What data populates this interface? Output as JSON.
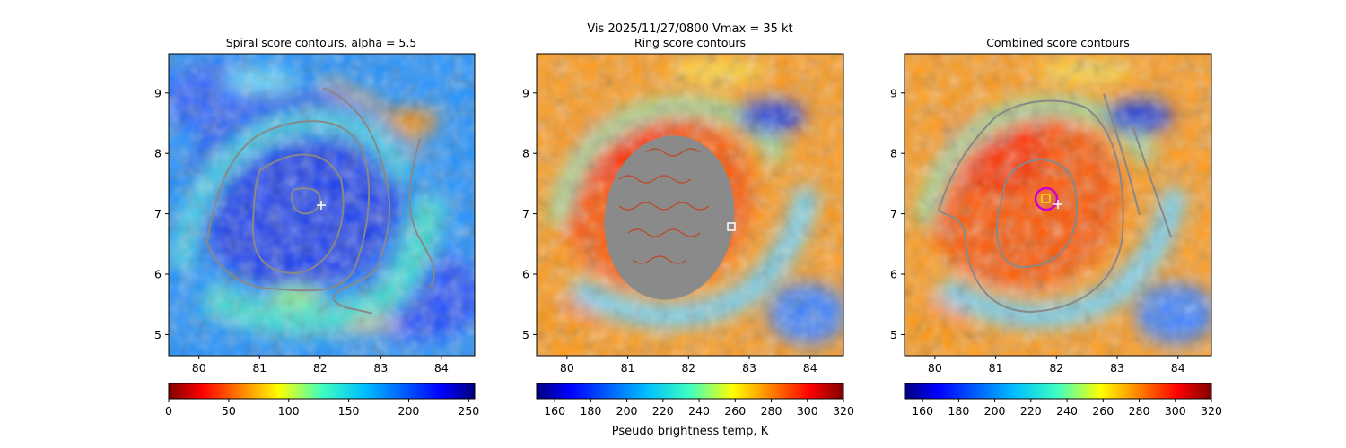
{
  "suptitle": "Vis  2025/11/27/0800    Vmax = 35 kt",
  "colorbar_xlabel": "Pseudo brightness temp, K",
  "chart_data": [
    {
      "type": "heatmap",
      "title": "Spiral score contours, alpha =  5.5",
      "xlim": [
        79.5,
        84.55
      ],
      "ylim": [
        4.65,
        9.65
      ],
      "xticks": [
        "80",
        "81",
        "82",
        "83",
        "84"
      ],
      "yticks": [
        "5",
        "6",
        "7",
        "8",
        "9"
      ],
      "colormap": "jet",
      "colorbar": {
        "min": 0,
        "max": 255,
        "ticks": [
          "0",
          "50",
          "100",
          "150",
          "200",
          "250"
        ],
        "label": ""
      },
      "background": "cool",
      "markers": [
        {
          "kind": "plus",
          "x": 82.0,
          "y": 7.15,
          "color": "#ffffff"
        }
      ],
      "contour_color": "#888888"
    },
    {
      "type": "heatmap",
      "title": "Ring score contours",
      "xlim": [
        79.5,
        84.55
      ],
      "ylim": [
        4.65,
        9.65
      ],
      "xticks": [
        "80",
        "81",
        "82",
        "83",
        "84"
      ],
      "yticks": [
        "5",
        "6",
        "7",
        "8",
        "9"
      ],
      "colormap": "jet_r",
      "colorbar": {
        "min": 150,
        "max": 320,
        "ticks": [
          "160",
          "180",
          "200",
          "220",
          "240",
          "260",
          "280",
          "300",
          "320"
        ],
        "label": "Pseudo brightness temp, K"
      },
      "background": "warm",
      "markers": [
        {
          "kind": "square",
          "x": 82.7,
          "y": 6.8,
          "color": "#ffffff"
        }
      ],
      "contour_color": "#888888"
    },
    {
      "type": "heatmap",
      "title": "Combined score contours",
      "xlim": [
        79.5,
        84.55
      ],
      "ylim": [
        4.65,
        9.65
      ],
      "xticks": [
        "80",
        "81",
        "82",
        "83",
        "84"
      ],
      "yticks": [
        "5",
        "6",
        "7",
        "8",
        "9"
      ],
      "colormap": "jet_r",
      "colorbar": {
        "min": 150,
        "max": 320,
        "ticks": [
          "160",
          "180",
          "200",
          "220",
          "240",
          "260",
          "280",
          "300",
          "320"
        ],
        "label": ""
      },
      "background": "warm",
      "markers": [
        {
          "kind": "circle",
          "x": 81.8,
          "y": 7.28,
          "color": "#cc00cc"
        },
        {
          "kind": "square",
          "x": 81.78,
          "y": 7.27,
          "color": "#ffd700"
        },
        {
          "kind": "plus",
          "x": 82.0,
          "y": 7.18,
          "color": "#ffffff"
        }
      ],
      "contour_color": "#888888"
    }
  ]
}
